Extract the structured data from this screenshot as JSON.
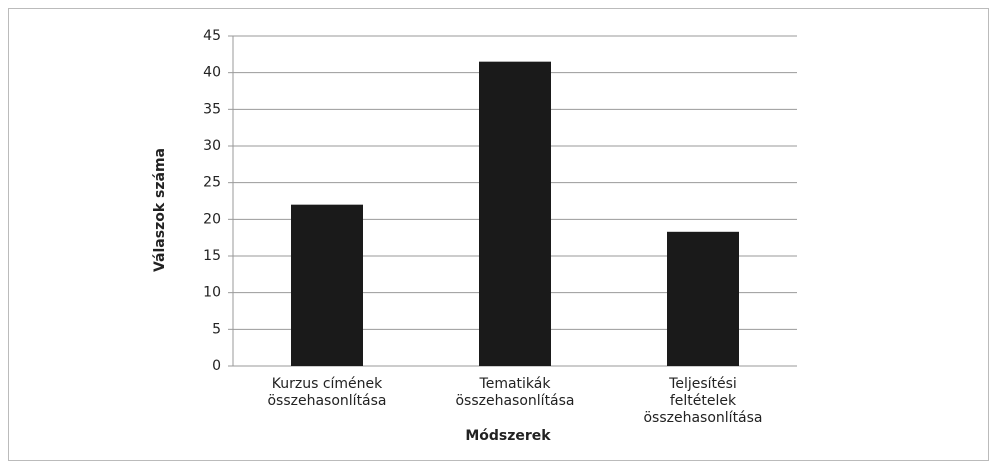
{
  "chart_data": {
    "type": "bar",
    "categories": [
      "Kurzus címének összehasonlítása",
      "Tematikák összehasonlítása",
      "Teljesítési feltételek összehasonlítása"
    ],
    "values": [
      22,
      41.5,
      18.3
    ],
    "color": "#1a1a1a",
    "x_label": "Módszerek",
    "y_label": "Válaszok száma",
    "ylim": [
      0,
      45
    ],
    "yticks": [
      0,
      5,
      10,
      15,
      20,
      25,
      30,
      35,
      40,
      45
    ],
    "grid": true
  }
}
